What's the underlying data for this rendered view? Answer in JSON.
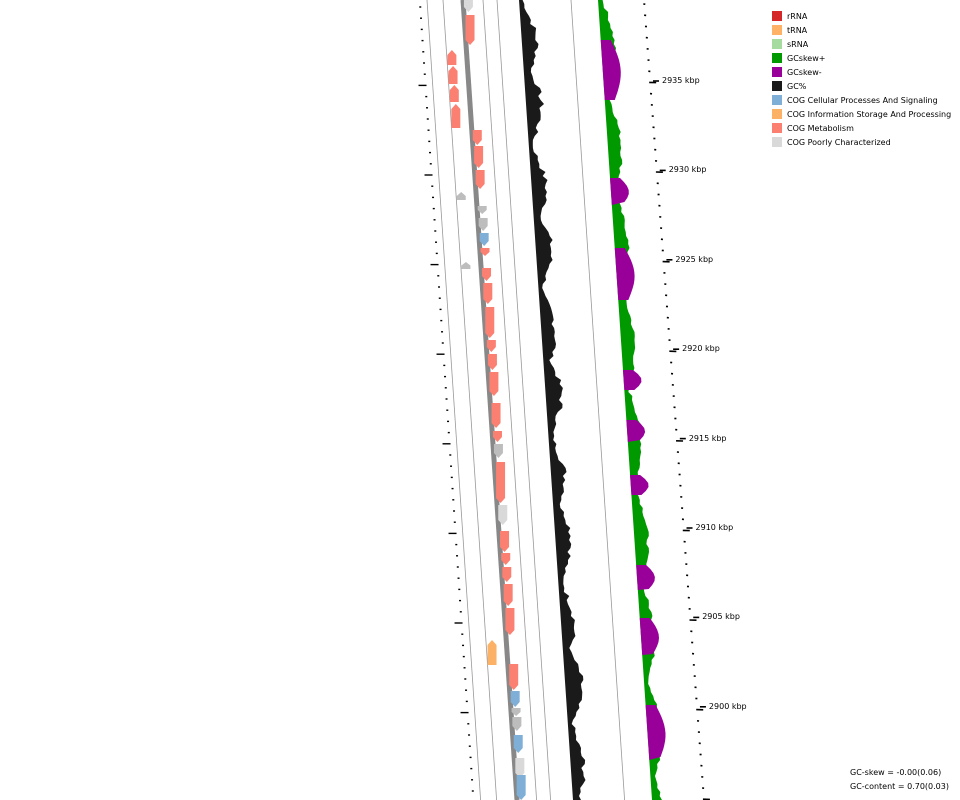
{
  "legend": [
    {
      "label": "rRNA",
      "color": "#d62728"
    },
    {
      "label": "tRNA",
      "color": "#ffb266"
    },
    {
      "label": "sRNA",
      "color": "#a6dba0"
    },
    {
      "label": "GCskew+",
      "color": "#009900"
    },
    {
      "label": "GCskew-",
      "color": "#990099"
    },
    {
      "label": "GC%",
      "color": "#1a1a1a"
    },
    {
      "label": "COG Cellular Processes And Signaling",
      "color": "#7fafd6"
    },
    {
      "label": "COG Information Storage And Processing",
      "color": "#fcb266"
    },
    {
      "label": "COG Metabolism",
      "color": "#fb8072"
    },
    {
      "label": "COG Poorly Characterized",
      "color": "#d9d9d9"
    }
  ],
  "scale_labels": [
    "2935 kbp",
    "2930 kbp",
    "2925 kbp",
    "2920 kbp",
    "2915 kbp",
    "2910 kbp",
    "2905 kbp",
    "2900 kbp"
  ],
  "stats": {
    "gc_skew": "GC-skew = -0.00(0.06)",
    "gc_content": "GC-content = 0.70(0.03)"
  },
  "colors": {
    "metabolism": "#fb8072",
    "cellular": "#7fafd6",
    "info": "#fcb266",
    "poor": "#d9d9d9",
    "poor_dark": "#bdbdbd",
    "gc": "#1a1a1a",
    "skew_pos": "#009900",
    "skew_neg": "#990099",
    "backbone": "#888888"
  }
}
